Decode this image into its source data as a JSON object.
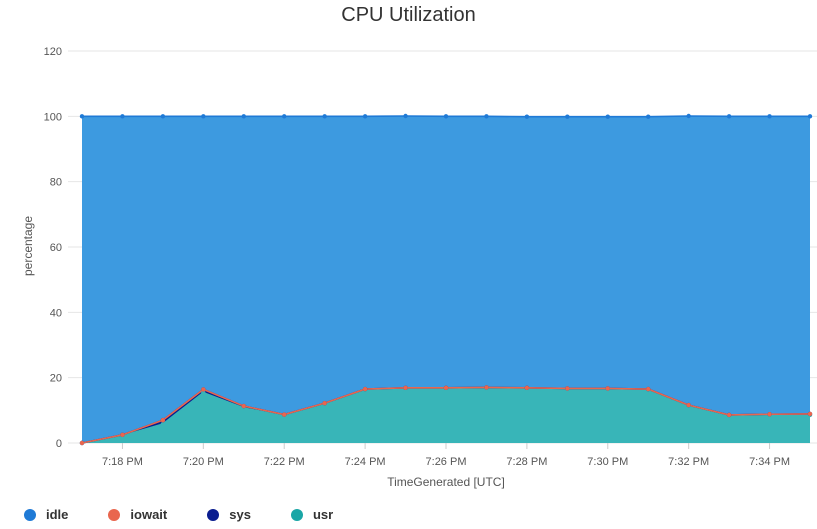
{
  "chart_data": {
    "type": "area",
    "title": "CPU Utilization",
    "xlabel": "TimeGenerated [UTC]",
    "ylabel": "percentage",
    "ylim": [
      0,
      120
    ],
    "yticks": [
      0,
      20,
      40,
      60,
      80,
      100,
      120
    ],
    "x": [
      "7:17 PM",
      "7:18 PM",
      "7:19 PM",
      "7:20 PM",
      "7:21 PM",
      "7:22 PM",
      "7:23 PM",
      "7:24 PM",
      "7:25 PM",
      "7:26 PM",
      "7:27 PM",
      "7:28 PM",
      "7:29 PM",
      "7:30 PM",
      "7:31 PM",
      "7:32 PM",
      "7:33 PM",
      "7:34 PM",
      "7:35 PM"
    ],
    "xtick_labels": [
      "7:18 PM",
      "7:20 PM",
      "7:22 PM",
      "7:24 PM",
      "7:26 PM",
      "7:28 PM",
      "7:30 PM",
      "7:32 PM",
      "7:34 PM"
    ],
    "stacking": "cumulative",
    "grid": true,
    "legend_position": "bottom-left",
    "series": [
      {
        "name": "usr",
        "color": "#38b5b8",
        "values": [
          0,
          2.2,
          5.8,
          15.4,
          10.7,
          8.4,
          11.8,
          16.2,
          16.5,
          16.6,
          16.7,
          16.6,
          16.4,
          16.4,
          16.2,
          11.3,
          8.4,
          8.5,
          8.6
        ]
      },
      {
        "name": "sys",
        "color": "#0a1d8f",
        "values": [
          0,
          0.3,
          1.2,
          1.0,
          0.6,
          0.3,
          0.4,
          0.3,
          0.4,
          0.3,
          0.3,
          0.3,
          0.3,
          0.3,
          0.3,
          0.3,
          0.2,
          0.3,
          0.3
        ]
      },
      {
        "name": "iowait",
        "color": "#e9664e",
        "values": [
          0,
          0,
          0,
          0,
          0,
          0,
          0,
          0,
          0,
          0,
          0,
          0,
          0,
          0,
          0,
          0,
          0,
          0,
          0
        ]
      },
      {
        "name": "idle",
        "color": "#3d9ae0",
        "values": [
          100,
          97.5,
          93,
          83.6,
          88.7,
          91.3,
          87.8,
          83.5,
          83.2,
          83.1,
          83.0,
          83.0,
          83.2,
          83.2,
          83.4,
          88.5,
          91.4,
          91.2,
          91.1
        ]
      }
    ]
  },
  "legend": [
    {
      "label": "idle",
      "color": "#1f7ad6"
    },
    {
      "label": "iowait",
      "color": "#e9664e"
    },
    {
      "label": "sys",
      "color": "#0a1d8f"
    },
    {
      "label": "usr",
      "color": "#1aa6a6"
    }
  ]
}
